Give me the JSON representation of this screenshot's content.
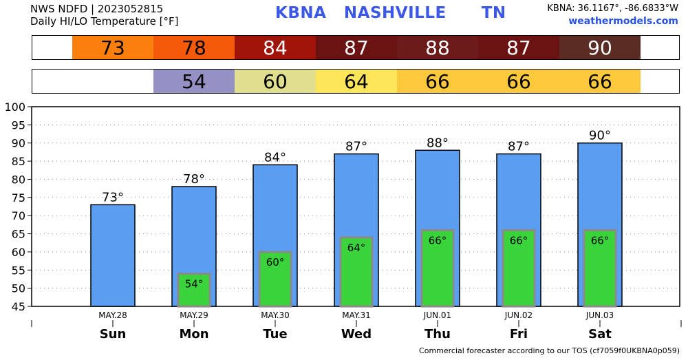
{
  "header": {
    "line1": "NWS NDFD | 2023052815",
    "line2": "Daily HI/LO Temperature [°F]",
    "station": "KBNA   NASHVILLE      TN",
    "coords": "KBNA: 36.1167°, -86.6833°W",
    "site": "weathermodels.com"
  },
  "footer": "Commercial forecaster according to our TOS (cf7059f0UKBNA0p059)",
  "hi_strip": [
    {
      "value": "73",
      "bg": "#fb7f0c",
      "fg": "#000000"
    },
    {
      "value": "78",
      "bg": "#f55a0b",
      "fg": "#000000"
    },
    {
      "value": "84",
      "bg": "#a1140a",
      "fg": "#ffffff"
    },
    {
      "value": "87",
      "bg": "#6b1212",
      "fg": "#ffffff"
    },
    {
      "value": "88",
      "bg": "#6d1a1a",
      "fg": "#ffffff"
    },
    {
      "value": "87",
      "bg": "#6b1212",
      "fg": "#ffffff"
    },
    {
      "value": "90",
      "bg": "#5a2c24",
      "fg": "#ffffff"
    }
  ],
  "lo_strip": [
    {
      "value": "",
      "bg": "#ffffff",
      "fg": "#000000"
    },
    {
      "value": "54",
      "bg": "#9691c5",
      "fg": "#000000"
    },
    {
      "value": "60",
      "bg": "#e0df90",
      "fg": "#000000"
    },
    {
      "value": "64",
      "bg": "#fde55a",
      "fg": "#000000"
    },
    {
      "value": "66",
      "bg": "#fcc83c",
      "fg": "#000000"
    },
    {
      "value": "66",
      "bg": "#fcc83c",
      "fg": "#000000"
    },
    {
      "value": "66",
      "bg": "#fcc83c",
      "fg": "#000000"
    }
  ],
  "chart_data": {
    "type": "bar",
    "categories": [
      "MAY.28",
      "MAY.29",
      "MAY.30",
      "MAY.31",
      "JUN.01",
      "JUN.02",
      "JUN.03"
    ],
    "days": [
      "Sun",
      "Mon",
      "Tue",
      "Wed",
      "Thu",
      "Fri",
      "Sat"
    ],
    "series": [
      {
        "values": [
          73,
          78,
          84,
          87,
          88,
          87,
          90
        ],
        "labels": [
          "73°",
          "78°",
          "84°",
          "87°",
          "88°",
          "87°",
          "90°"
        ],
        "color": "#5b9df0"
      },
      {
        "values": [
          null,
          54,
          60,
          64,
          66,
          66,
          66
        ],
        "labels": [
          "",
          "54°",
          "60°",
          "64°",
          "66°",
          "66°",
          "66°"
        ],
        "color": "#3ad33c"
      }
    ],
    "ylim": [
      45,
      100
    ],
    "yticks": [
      45,
      50,
      55,
      60,
      65,
      70,
      75,
      80,
      85,
      90,
      95,
      100
    ],
    "grid": true
  }
}
